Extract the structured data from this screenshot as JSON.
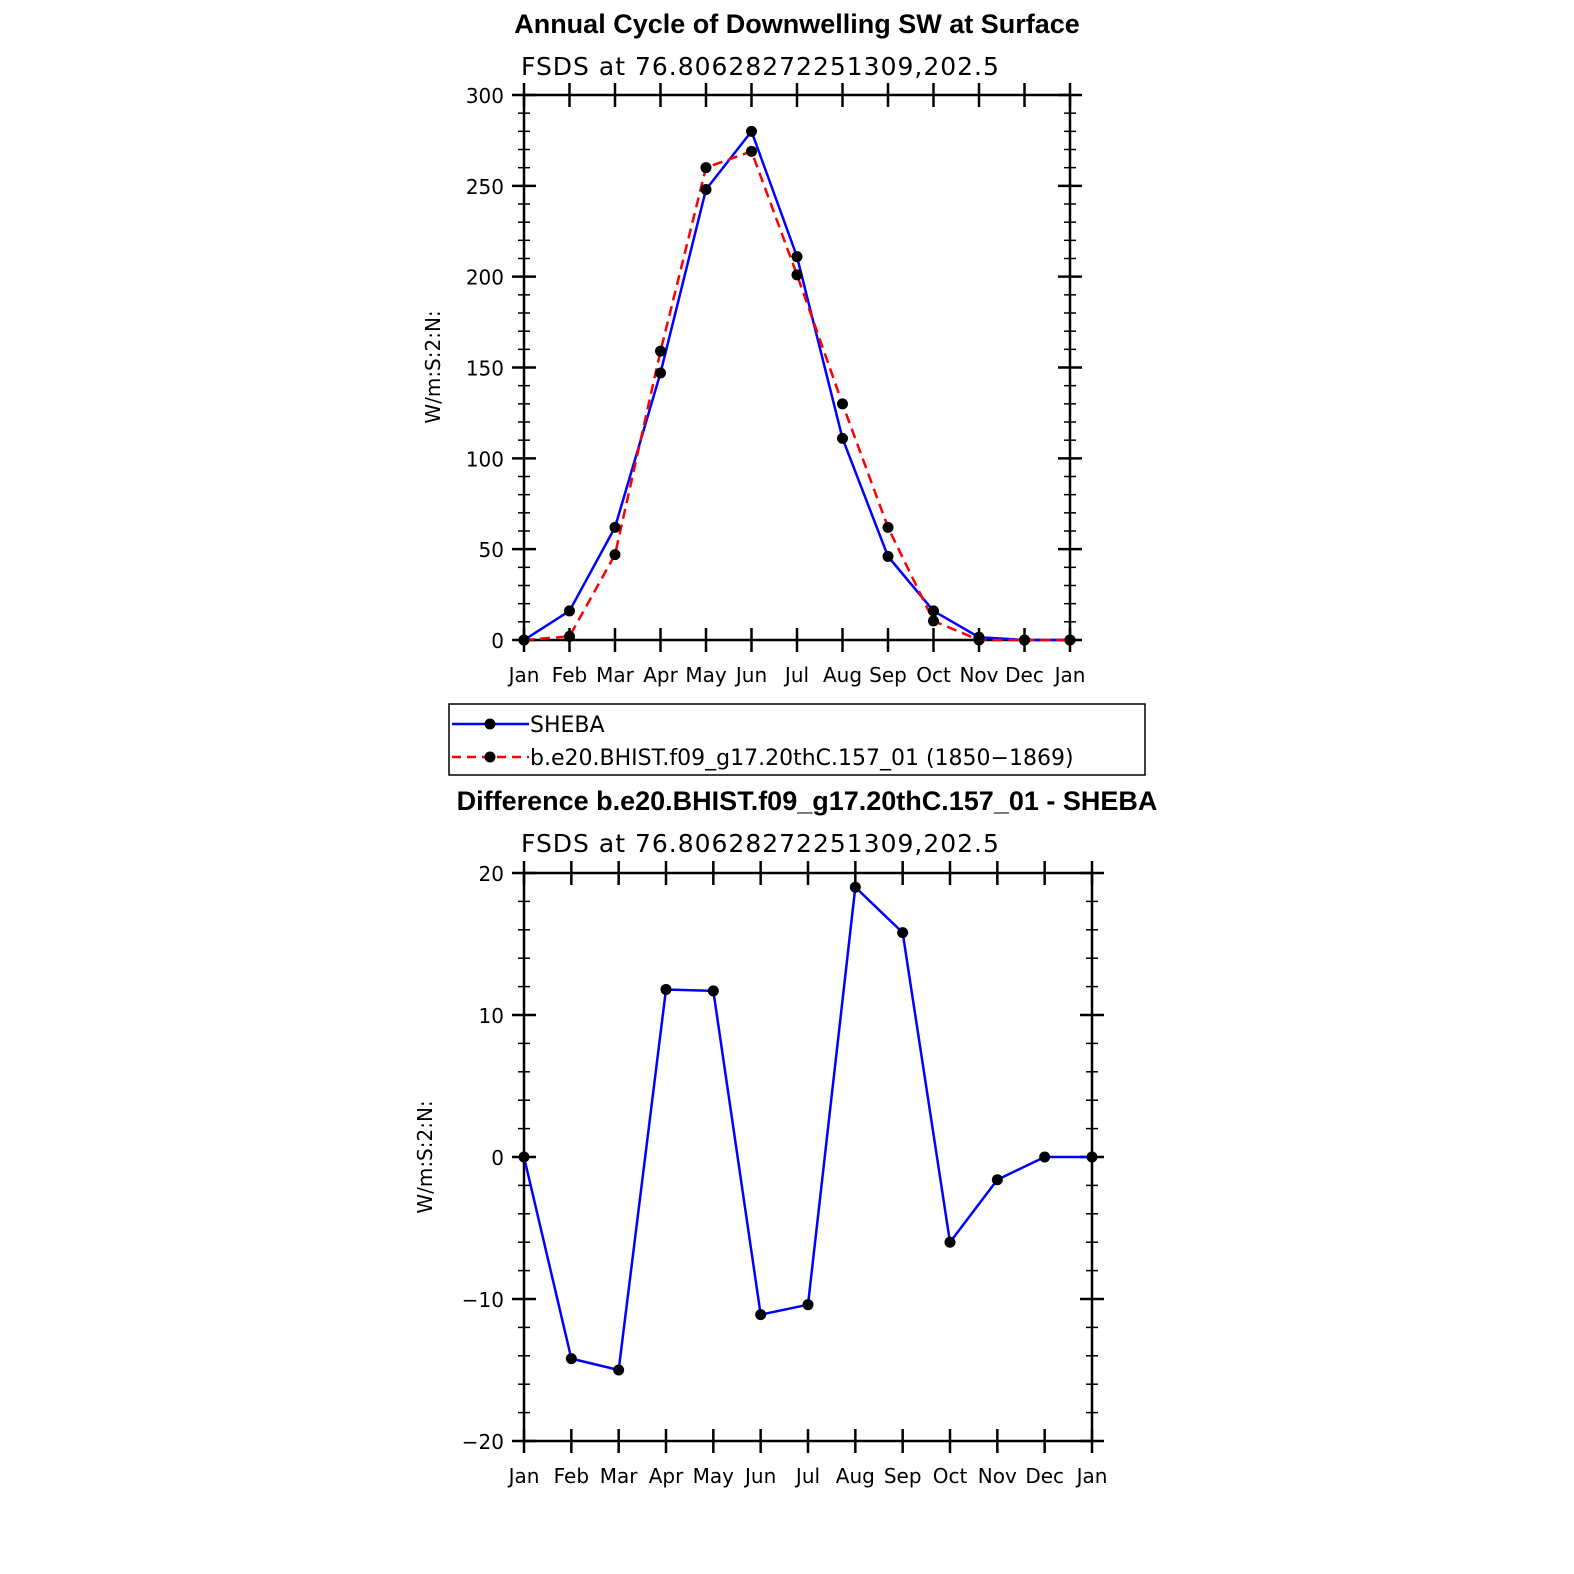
{
  "chart_data": [
    {
      "type": "line",
      "title": "Annual Cycle of Downwelling SW at Surface",
      "subtitle": "FSDS at 76.80628272251309,202.5",
      "ylabel": "W/m:S:2:N:",
      "xlabel": "",
      "categories": [
        "Jan",
        "Feb",
        "Mar",
        "Apr",
        "May",
        "Jun",
        "Jul",
        "Aug",
        "Sep",
        "Oct",
        "Nov",
        "Dec",
        "Jan"
      ],
      "ylim": [
        0,
        300
      ],
      "yticks": [
        0,
        50,
        100,
        150,
        200,
        250,
        300
      ],
      "series": [
        {
          "name": "SHEBA",
          "color": "#0000ff",
          "dash": "solid",
          "values": [
            0,
            16,
            62,
            147,
            248,
            280,
            211,
            111,
            46,
            16,
            1.5,
            0,
            0
          ]
        },
        {
          "name": "b.e20.BHIST.f09_g17.20thC.157_01 (1850−1869)",
          "color": "#ff0000",
          "dash": "dashed",
          "values": [
            0,
            2,
            47,
            159,
            260,
            269,
            201,
            130,
            62,
            10.5,
            0,
            0,
            0
          ]
        }
      ],
      "legend": "below"
    },
    {
      "type": "line",
      "title": "Difference b.e20.BHIST.f09_g17.20thC.157_01 - SHEBA",
      "subtitle": "FSDS at 76.80628272251309,202.5",
      "ylabel": "W/m:S:2:N:",
      "xlabel": "",
      "categories": [
        "Jan",
        "Feb",
        "Mar",
        "Apr",
        "May",
        "Jun",
        "Jul",
        "Aug",
        "Sep",
        "Oct",
        "Nov",
        "Dec",
        "Jan"
      ],
      "ylim": [
        -20,
        20
      ],
      "yticks": [
        -20,
        -10,
        0,
        10,
        20
      ],
      "ytick_labels": [
        "−20",
        "−10",
        "0",
        "10",
        "20"
      ],
      "series": [
        {
          "color": "#0000ff",
          "dash": "solid",
          "values": [
            0,
            -14.2,
            -15,
            11.8,
            11.7,
            -11.1,
            -10.4,
            19,
            15.8,
            -6,
            -1.6,
            0,
            0
          ]
        }
      ]
    }
  ]
}
